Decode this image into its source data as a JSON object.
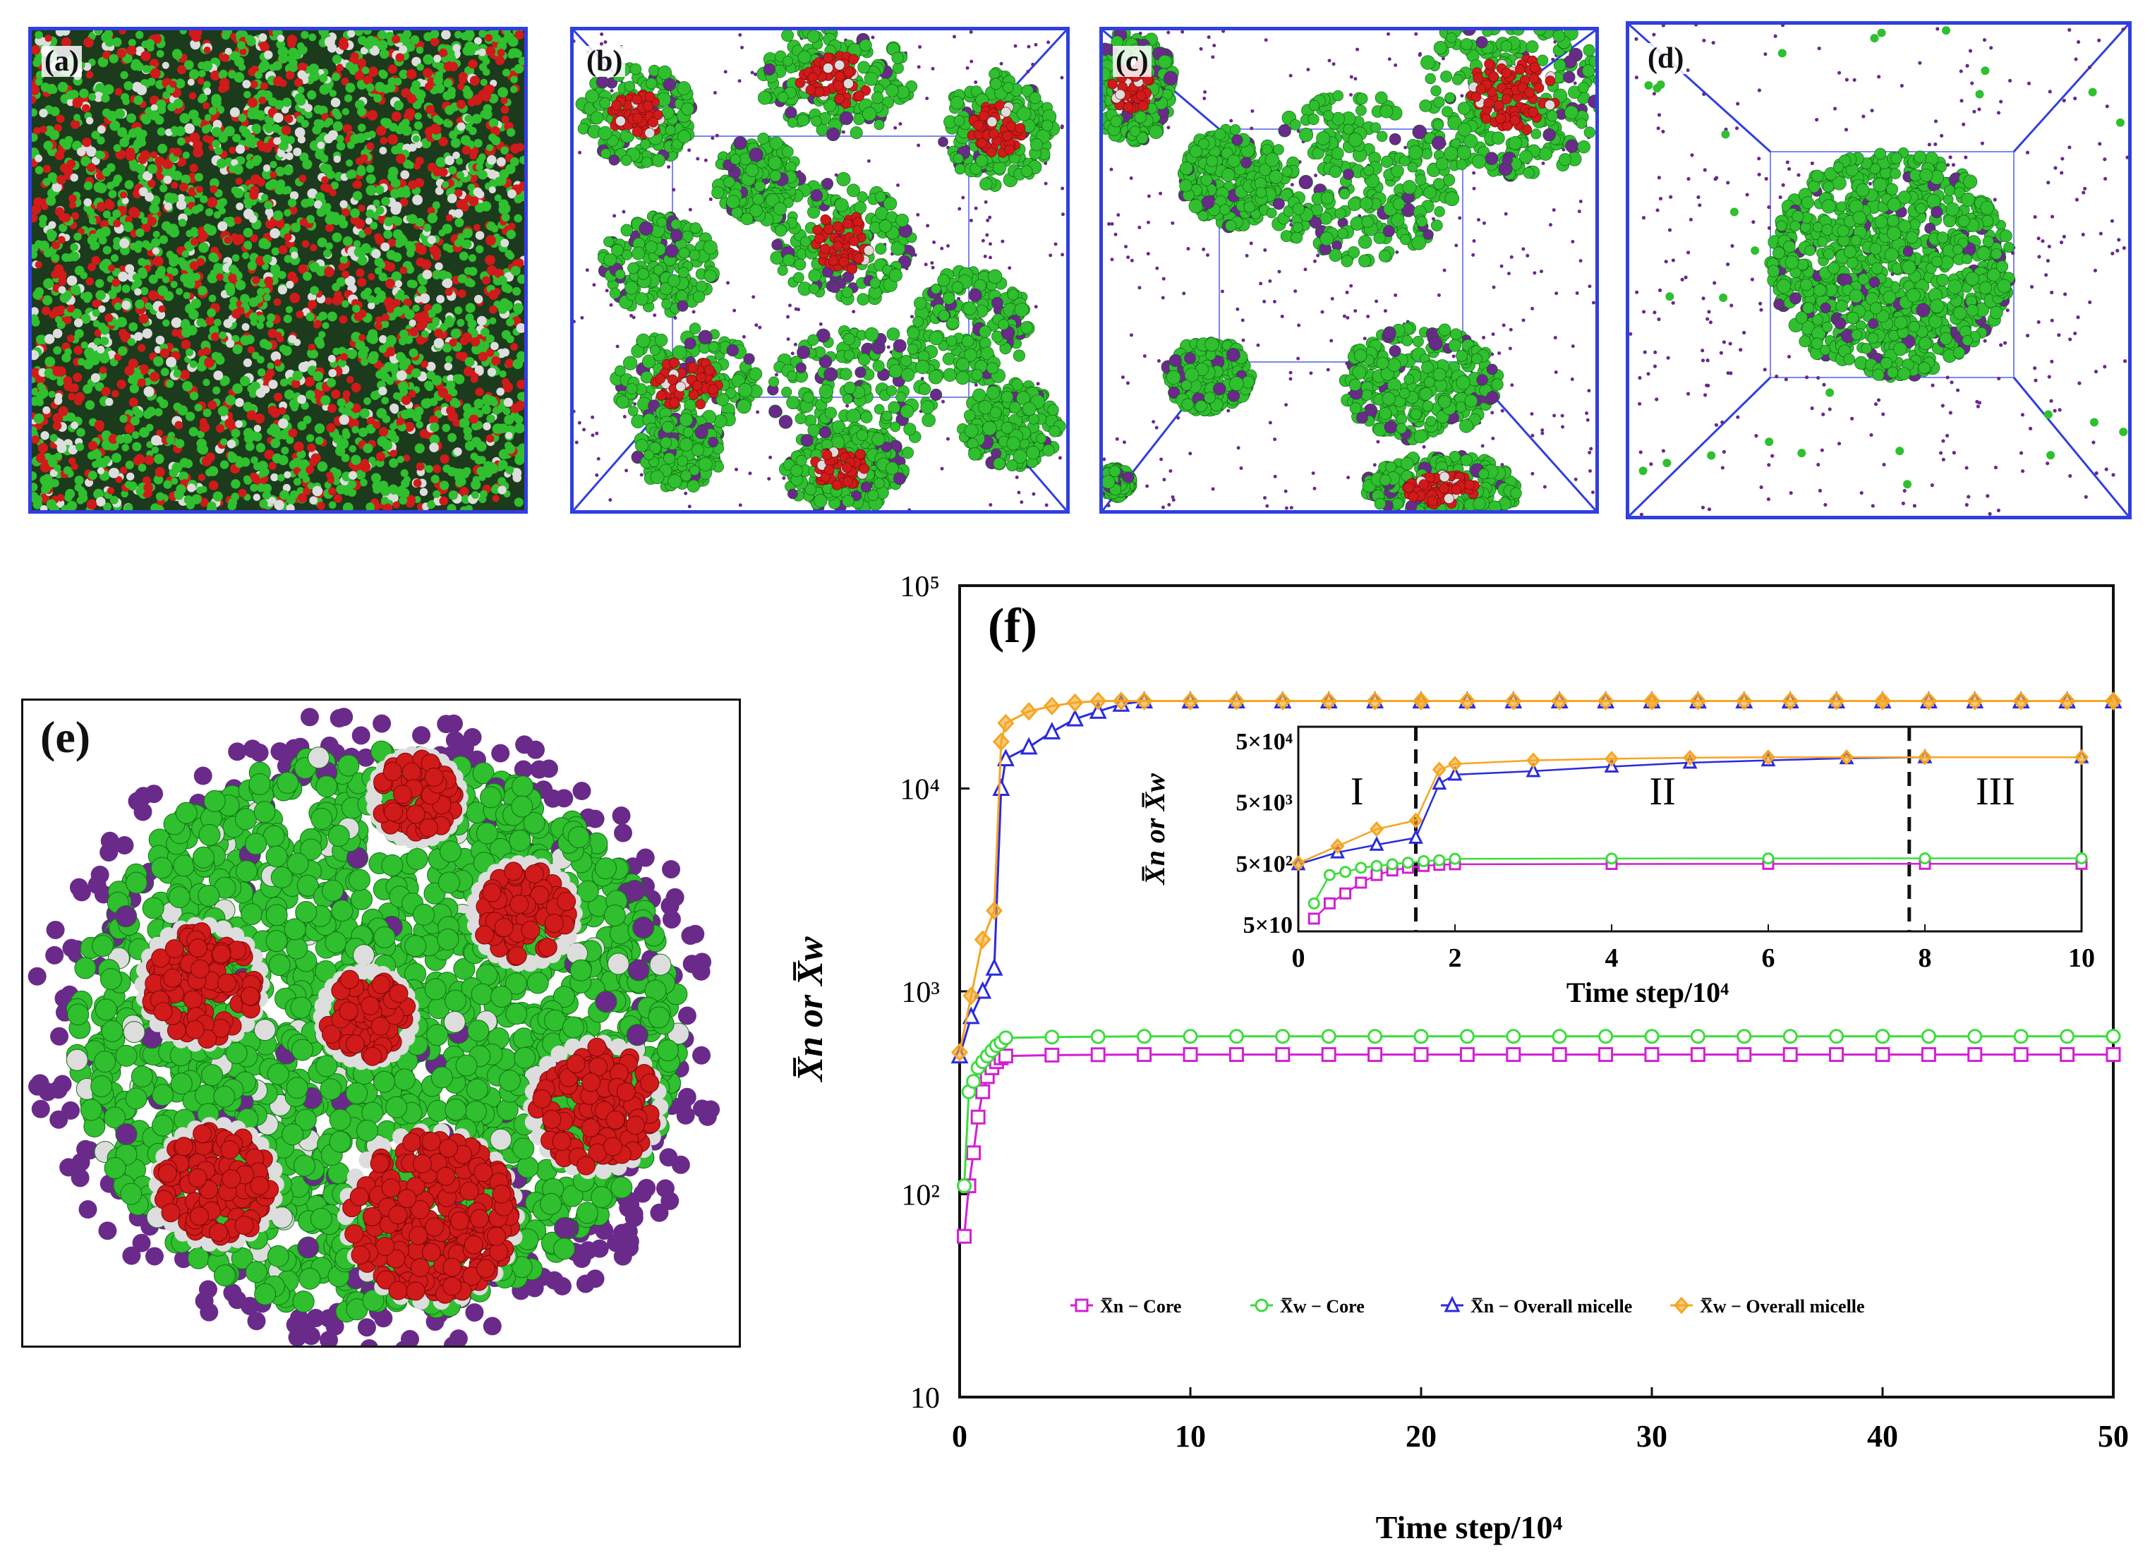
{
  "panels": {
    "a": {
      "label": "(a)"
    },
    "b": {
      "label": "(b)"
    },
    "c": {
      "label": "(c)"
    },
    "d": {
      "label": "(d)"
    },
    "e": {
      "label": "(e)"
    },
    "f": {
      "label": "(f)"
    }
  },
  "colors": {
    "red_bead": "#d11a1a",
    "green_bead": "#2fbf2f",
    "white_bead": "#dddddd",
    "purple_bead": "#6a2a8a",
    "box_edge": "#2f3fe0"
  },
  "chart_data": {
    "type": "line",
    "title": "",
    "xlabel": "Time step/10⁴",
    "ylabel": "X̅n or X̅w",
    "yscale": "log",
    "xlim": [
      0,
      50
    ],
    "ylim": [
      10,
      100000
    ],
    "x_ticks": [
      "0",
      "10",
      "20",
      "30",
      "40",
      "50"
    ],
    "y_ticks": [
      "10",
      "10²",
      "10³",
      "10⁴",
      "10⁵"
    ],
    "series": [
      {
        "name": "X̅n − Core",
        "color": "#d21fd2",
        "marker": "square",
        "x": [
          0.2,
          0.4,
          0.6,
          0.8,
          1.0,
          1.2,
          1.4,
          1.6,
          1.8,
          2,
          4,
          6,
          8,
          10,
          20,
          30,
          40,
          50
        ],
        "y": [
          62,
          110,
          160,
          240,
          320,
          380,
          420,
          450,
          470,
          480,
          485,
          487,
          488,
          488,
          488,
          488,
          488,
          488
        ]
      },
      {
        "name": "X̅w − Core",
        "color": "#3ddc3d",
        "marker": "circle",
        "x": [
          0.2,
          0.4,
          0.6,
          0.8,
          1.0,
          1.2,
          1.4,
          1.6,
          1.8,
          2,
          4,
          6,
          8,
          10,
          20,
          30,
          40,
          50
        ],
        "y": [
          110,
          320,
          360,
          420,
          450,
          480,
          510,
          540,
          560,
          590,
          595,
          598,
          600,
          600,
          600,
          600,
          600,
          600
        ]
      },
      {
        "name": "X̅n − Overall micelle",
        "color": "#2a2ae0",
        "marker": "triangle",
        "x": [
          0,
          0.5,
          1.0,
          1.5,
          1.8,
          2,
          3,
          4,
          5,
          6,
          7,
          8,
          10,
          20,
          30,
          40,
          50
        ],
        "y": [
          480,
          750,
          1000,
          1300,
          10000,
          14000,
          16000,
          19000,
          22000,
          24000,
          26000,
          27000,
          27000,
          27000,
          27000,
          27000,
          27000
        ]
      },
      {
        "name": "X̅w − Overall micelle",
        "color": "#f5a623",
        "marker": "diamond",
        "x": [
          0,
          0.5,
          1.0,
          1.5,
          1.8,
          2,
          3,
          4,
          5,
          6,
          7,
          8,
          10,
          20,
          30,
          40,
          50
        ],
        "y": [
          500,
          950,
          1800,
          2500,
          17000,
          21000,
          24000,
          25500,
          26500,
          27000,
          27000,
          27000,
          27000,
          27000,
          27000,
          27000,
          27000
        ]
      }
    ],
    "legend_location": "lower-center",
    "inset": {
      "xlabel": "Time step/10⁴",
      "ylabel": "X̅n or X̅w",
      "xlim": [
        0,
        10
      ],
      "x_ticks": [
        "0",
        "2",
        "4",
        "6",
        "8",
        "10"
      ],
      "y_ticks": [
        "5×10",
        "5×10²",
        "5×10³",
        "5×10⁴"
      ],
      "region_labels": [
        "I",
        "II",
        "III"
      ],
      "region_boundaries": [
        1.5,
        7.8
      ]
    }
  }
}
